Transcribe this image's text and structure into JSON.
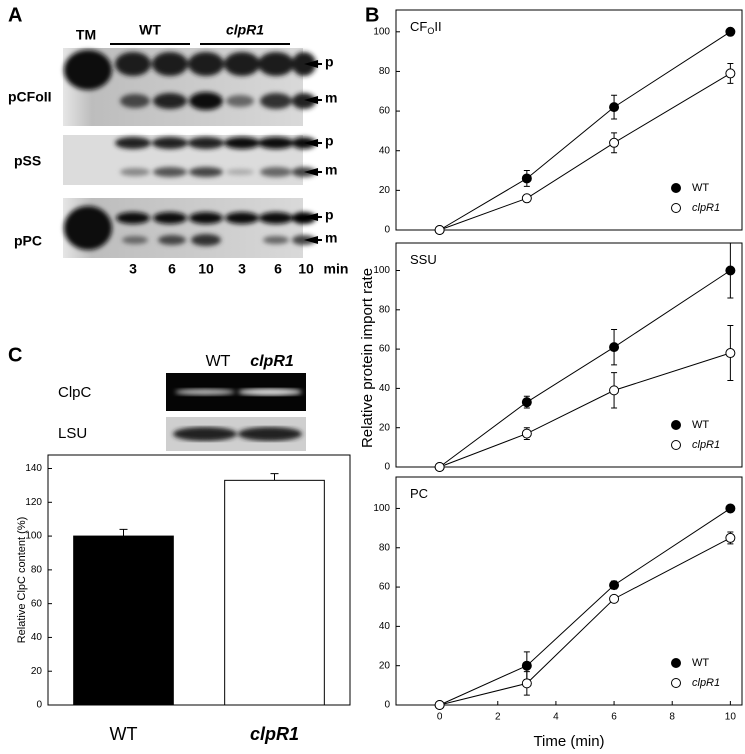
{
  "panel_labels": [
    "A",
    "B",
    "C"
  ],
  "gel_a": {
    "lanes_header": [
      "TM",
      "WT",
      "clpR1"
    ],
    "rows": [
      "pCFoII",
      "pSS",
      "pPC"
    ],
    "bands": [
      "p",
      "m"
    ],
    "times": [
      "3",
      "6",
      "10",
      "3",
      "6",
      "10"
    ],
    "time_unit": "min"
  },
  "blot_c": {
    "columns": [
      "WT",
      "clpR1"
    ],
    "rows": [
      "ClpC",
      "LSU"
    ]
  },
  "chart_data": [
    {
      "type": "line",
      "title": [
        "CF",
        "O",
        "II"
      ],
      "x": [
        0,
        3,
        6,
        10
      ],
      "xlim": [
        -1.5,
        10.4
      ],
      "ylim": [
        0,
        111
      ],
      "yticks": [
        0,
        20,
        40,
        60,
        80,
        100
      ],
      "legend": "lower right",
      "series": [
        {
          "name": "WT",
          "color": "#000000",
          "filled": true,
          "italic": false,
          "values": [
            0,
            26,
            62,
            100
          ],
          "errors": [
            0,
            4,
            6,
            0
          ]
        },
        {
          "name": "clpR1",
          "color": "#000000",
          "filled": false,
          "italic": true,
          "values": [
            0,
            16,
            44,
            79
          ],
          "errors": [
            0,
            1,
            5,
            5
          ]
        }
      ]
    },
    {
      "type": "line",
      "title": [
        "SSU"
      ],
      "ylabel": "Relative protein import rate",
      "x": [
        0,
        3,
        6,
        10
      ],
      "xlim": [
        -1.5,
        10.4
      ],
      "ylim": [
        0,
        114
      ],
      "yticks": [
        0,
        20,
        40,
        60,
        80,
        100
      ],
      "legend": "lower right",
      "series": [
        {
          "name": "WT",
          "color": "#000000",
          "filled": true,
          "italic": false,
          "values": [
            0,
            33,
            61,
            100
          ],
          "errors": [
            0,
            3,
            9,
            14
          ]
        },
        {
          "name": "clpR1",
          "color": "#000000",
          "filled": false,
          "italic": true,
          "values": [
            0,
            17,
            39,
            58
          ],
          "errors": [
            0,
            3,
            9,
            14
          ]
        }
      ]
    },
    {
      "type": "line",
      "title": [
        "PC"
      ],
      "xlabel": "Time (min)",
      "x": [
        0,
        3,
        6,
        10
      ],
      "xlim": [
        -1.5,
        10.4
      ],
      "xticks": [
        0,
        2,
        4,
        6,
        8,
        10
      ],
      "ylim": [
        0,
        116
      ],
      "yticks": [
        0,
        20,
        40,
        60,
        80,
        100
      ],
      "legend": "lower right",
      "series": [
        {
          "name": "WT",
          "color": "#000000",
          "filled": true,
          "italic": false,
          "values": [
            0,
            20,
            61,
            100
          ],
          "errors": [
            0,
            7,
            2,
            1
          ]
        },
        {
          "name": "clpR1",
          "color": "#000000",
          "filled": false,
          "italic": true,
          "values": [
            0,
            11,
            54,
            85
          ],
          "errors": [
            0,
            6,
            1,
            3
          ]
        }
      ]
    },
    {
      "type": "bar",
      "ylabel": "Relative ClpC content (%)",
      "categories": [
        "WT",
        "clpR1"
      ],
      "category_italic": [
        false,
        true
      ],
      "values": [
        100,
        133
      ],
      "errors": [
        4,
        4
      ],
      "colors": [
        "#000000",
        "#ffffff"
      ],
      "ylim": [
        0,
        148
      ],
      "yticks": [
        0,
        20,
        40,
        60,
        80,
        100,
        120,
        140
      ]
    }
  ]
}
